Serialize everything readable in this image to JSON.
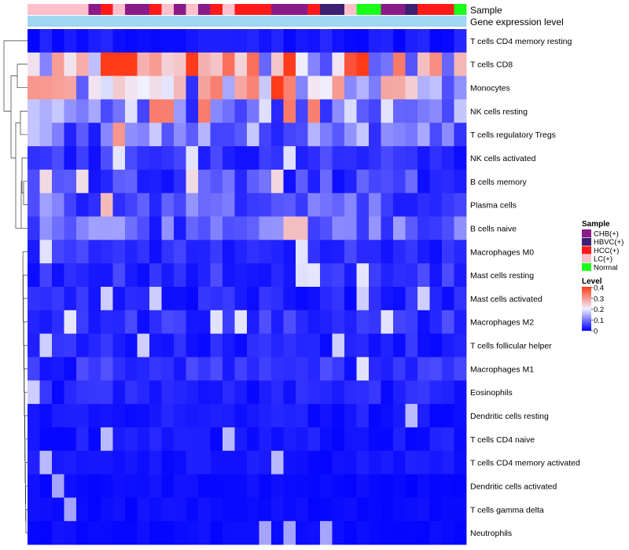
{
  "chart_data": {
    "type": "heatmap",
    "annotation_labels": {
      "sample": "Sample",
      "gene_level": "Gene expression level"
    },
    "rows": [
      "T cells CD4 memory resting",
      "T cells CD8",
      "Monocytes",
      "NK cells resting",
      "T cells regulatory  Tregs",
      "NK cells activated",
      "B cells memory",
      "Plasma cells",
      "B cells naive",
      "Macrophages M0",
      "Mast cells resting",
      "Mast cells activated",
      "Macrophages M2",
      "T cells follicular helper",
      "Macrophages M1",
      "Eosinophils",
      "Dendritic cells resting",
      "T cells CD4 naive",
      "T cells CD4 memory activated",
      "Dendritic cells activated",
      "T cells gamma delta",
      "Neutrophils"
    ],
    "row_base": [
      0.02,
      0.3,
      0.2,
      0.12,
      0.1,
      0.04,
      0.06,
      0.08,
      0.08,
      0.04,
      0.04,
      0.03,
      0.04,
      0.03,
      0.04,
      0.03,
      0.02,
      0.02,
      0.02,
      0.01,
      0.01,
      0.01
    ],
    "samples": [
      "LC(+)",
      "LC(+)",
      "LC(+)",
      "LC(+)",
      "LC(+)",
      "CHB(+)",
      "HCC(+)",
      "LC(+)",
      "CHB(+)",
      "CHB(+)",
      "HCC(+)",
      "LC(+)",
      "CHB(+)",
      "LC(+)",
      "CHB(+)",
      "HCC(+)",
      "LC(+)",
      "HCC(+)",
      "HCC(+)",
      "HCC(+)",
      "CHB(+)",
      "CHB(+)",
      "CHB(+)",
      "HCC(+)",
      "HBVC(+)",
      "HBVC(+)",
      "LC(+)",
      "Normal",
      "Normal",
      "CHB(+)",
      "CHB(+)",
      "HBVC(+)",
      "HCC(+)",
      "HCC(+)",
      "HCC(+)",
      "Normal"
    ],
    "gene_level_color": "#9fd6f2",
    "sample_legend": {
      "title": "Sample",
      "entries": [
        {
          "label": "CHB(+)",
          "color": "#8b1a89"
        },
        {
          "label": "HBVC(+)",
          "color": "#3d1f73"
        },
        {
          "label": "HCC(+)",
          "color": "#ff1a1a"
        },
        {
          "label": "LC(+)",
          "color": "#ffc0cb"
        },
        {
          "label": "Normal",
          "color": "#1aff1a"
        }
      ]
    },
    "level_legend": {
      "title": "Level",
      "ticks": [
        0.4,
        0.3,
        0.2,
        0.1,
        0
      ],
      "range": [
        0,
        0.4
      ]
    },
    "colorscale": {
      "low": "#0000ff",
      "mid": "#f0f0ff",
      "high": "#ff3b1a",
      "midpoint": 0.2
    }
  }
}
